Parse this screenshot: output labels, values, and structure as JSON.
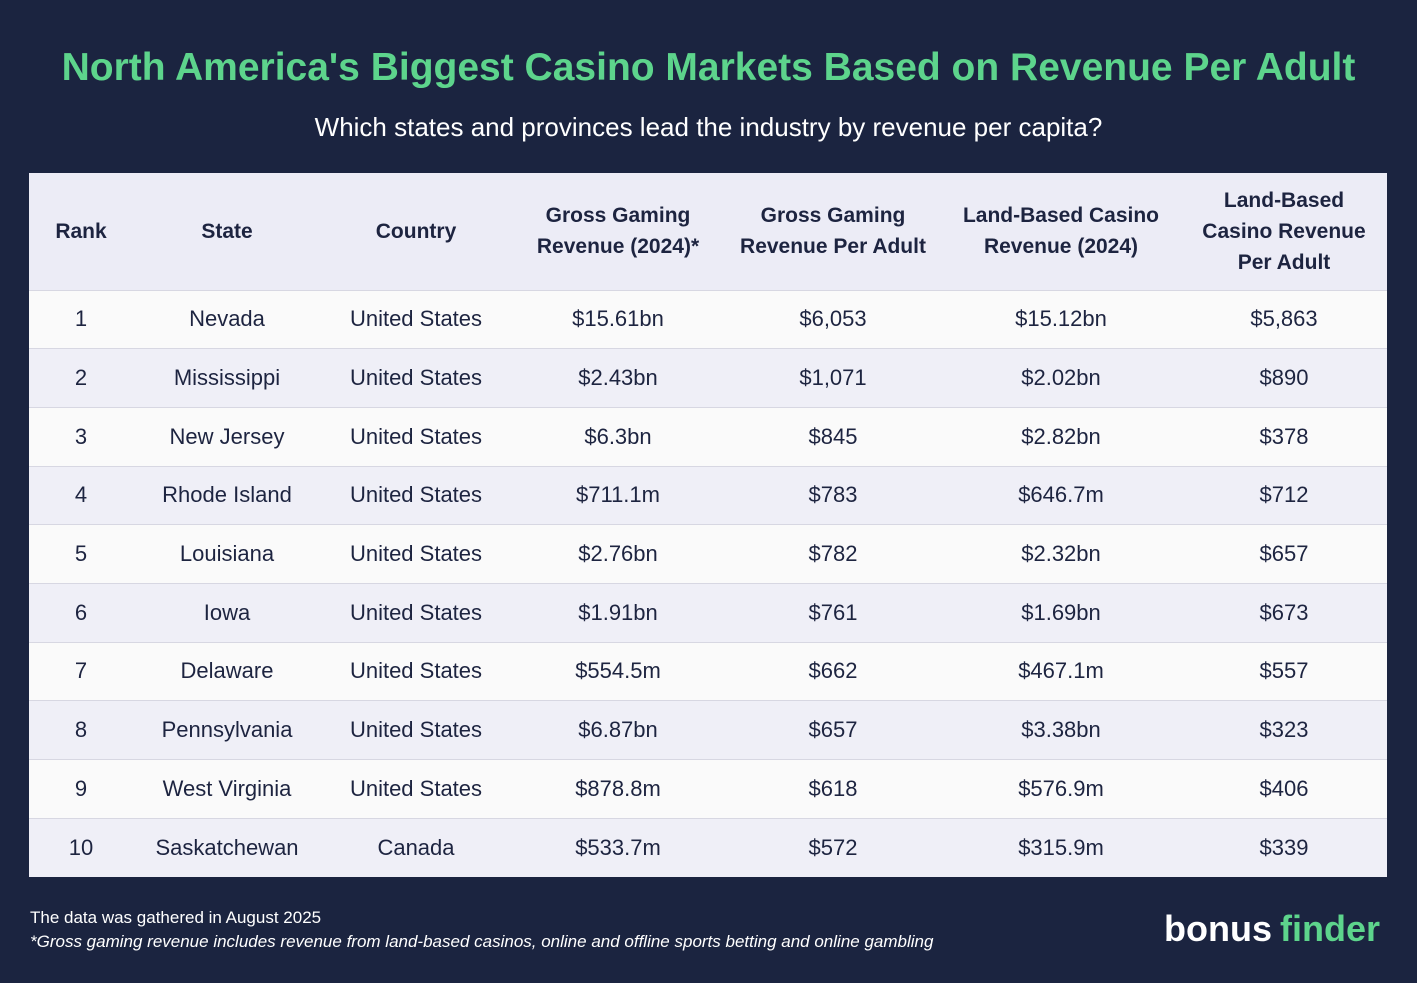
{
  "title": "North America's Biggest Casino Markets Based on Revenue Per Adult",
  "subtitle": "Which states and provinces lead the industry by revenue per capita?",
  "chart_data": {
    "type": "table",
    "columns": [
      "Rank",
      "State",
      "Country",
      "Gross Gaming Revenue (2024)*",
      "Gross Gaming Revenue Per Adult",
      "Land-Based Casino Revenue (2024)",
      "Land-Based Casino Revenue Per Adult"
    ],
    "rows": [
      [
        "1",
        "Nevada",
        "United States",
        "$15.61bn",
        "$6,053",
        "$15.12bn",
        "$5,863"
      ],
      [
        "2",
        "Mississippi",
        "United States",
        "$2.43bn",
        "$1,071",
        "$2.02bn",
        "$890"
      ],
      [
        "3",
        "New Jersey",
        "United States",
        "$6.3bn",
        "$845",
        "$2.82bn",
        "$378"
      ],
      [
        "4",
        "Rhode Island",
        "United States",
        "$711.1m",
        "$783",
        "$646.7m",
        "$712"
      ],
      [
        "5",
        "Louisiana",
        "United States",
        "$2.76bn",
        "$782",
        "$2.32bn",
        "$657"
      ],
      [
        "6",
        "Iowa",
        "United States",
        "$1.91bn",
        "$761",
        "$1.69bn",
        "$673"
      ],
      [
        "7",
        "Delaware",
        "United States",
        "$554.5m",
        "$662",
        "$467.1m",
        "$557"
      ],
      [
        "8",
        "Pennsylvania",
        "United States",
        "$6.87bn",
        "$657",
        "$3.38bn",
        "$323"
      ],
      [
        "9",
        "West Virginia",
        "United States",
        "$878.8m",
        "$618",
        "$576.9m",
        "$406"
      ],
      [
        "10",
        "Saskatchewan",
        "Canada",
        "$533.7m",
        "$572",
        "$315.9m",
        "$339"
      ]
    ]
  },
  "footer": {
    "note": "The data was gathered in August 2025",
    "footnote": "*Gross gaming revenue includes revenue from land-based casinos, online and offline sports betting and online gambling"
  },
  "logo": {
    "text_part1": "bonus",
    "text_part2": "finder"
  },
  "colors": {
    "background": "#1b2440",
    "title": "#5dd48c",
    "header_bg": "#ececf6",
    "row_light": "#fafafa",
    "row_tint": "#efeff7"
  }
}
